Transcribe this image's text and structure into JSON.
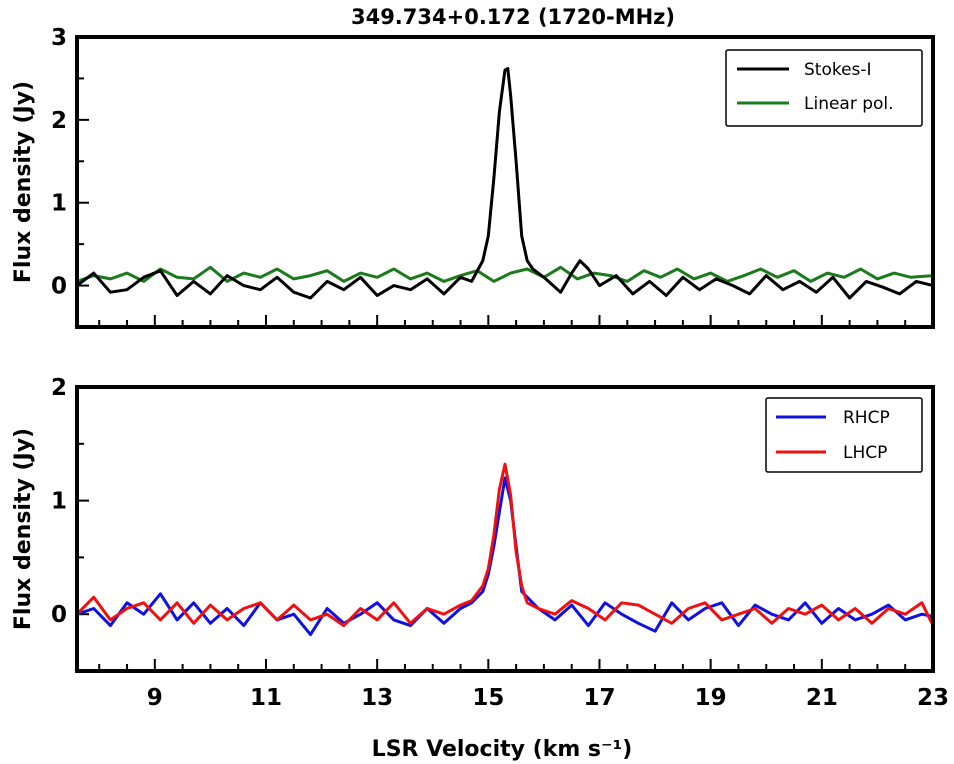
{
  "chart_data": [
    {
      "type": "line",
      "title": "349.734+0.172 (1720-MHz)",
      "xlabel": "",
      "ylabel": "Flux density (Jy)",
      "xlim": [
        7.6,
        23.0
      ],
      "ylim": [
        -0.5,
        3.0
      ],
      "yticks": [
        0,
        1,
        2,
        3
      ],
      "grid": false,
      "legend": "top-right",
      "series": [
        {
          "name": "Stokes-I",
          "color": "#000000",
          "x": [
            7.6,
            7.9,
            8.2,
            8.5,
            8.8,
            9.1,
            9.4,
            9.7,
            10.0,
            10.3,
            10.6,
            10.9,
            11.2,
            11.5,
            11.8,
            12.1,
            12.4,
            12.7,
            13.0,
            13.3,
            13.6,
            13.9,
            14.2,
            14.5,
            14.7,
            14.9,
            15.0,
            15.1,
            15.2,
            15.3,
            15.35,
            15.4,
            15.5,
            15.6,
            15.7,
            15.8,
            16.0,
            16.3,
            16.5,
            16.65,
            16.8,
            17.0,
            17.3,
            17.6,
            17.9,
            18.2,
            18.5,
            18.8,
            19.1,
            19.4,
            19.7,
            20.0,
            20.3,
            20.6,
            20.9,
            21.2,
            21.5,
            21.8,
            22.1,
            22.4,
            22.7,
            23.0
          ],
          "values": [
            0.0,
            0.15,
            -0.08,
            -0.05,
            0.1,
            0.18,
            -0.12,
            0.05,
            -0.1,
            0.12,
            0.0,
            -0.05,
            0.1,
            -0.08,
            -0.15,
            0.05,
            -0.05,
            0.1,
            -0.12,
            0.0,
            -0.05,
            0.08,
            -0.1,
            0.1,
            0.05,
            0.3,
            0.6,
            1.3,
            2.1,
            2.6,
            2.62,
            2.3,
            1.5,
            0.6,
            0.3,
            0.2,
            0.1,
            -0.08,
            0.15,
            0.3,
            0.2,
            0.0,
            0.12,
            -0.1,
            0.05,
            -0.12,
            0.1,
            -0.05,
            0.08,
            0.0,
            -0.1,
            0.12,
            -0.05,
            0.05,
            -0.08,
            0.1,
            -0.15,
            0.05,
            -0.02,
            -0.1,
            0.05,
            0.0
          ]
        },
        {
          "name": "Linear pol.",
          "color": "#1b7a1b",
          "x": [
            7.6,
            7.9,
            8.2,
            8.5,
            8.8,
            9.1,
            9.4,
            9.7,
            10.0,
            10.3,
            10.6,
            10.9,
            11.2,
            11.5,
            11.8,
            12.1,
            12.4,
            12.7,
            13.0,
            13.3,
            13.6,
            13.9,
            14.2,
            14.5,
            14.8,
            15.1,
            15.4,
            15.7,
            16.0,
            16.3,
            16.6,
            16.9,
            17.2,
            17.5,
            17.8,
            18.1,
            18.4,
            18.7,
            19.0,
            19.3,
            19.6,
            19.9,
            20.2,
            20.5,
            20.8,
            21.1,
            21.4,
            21.7,
            22.0,
            22.3,
            22.6,
            23.0
          ],
          "values": [
            0.05,
            0.12,
            0.08,
            0.15,
            0.05,
            0.2,
            0.1,
            0.08,
            0.22,
            0.05,
            0.15,
            0.1,
            0.2,
            0.08,
            0.12,
            0.18,
            0.05,
            0.15,
            0.1,
            0.2,
            0.08,
            0.15,
            0.05,
            0.12,
            0.18,
            0.05,
            0.15,
            0.2,
            0.1,
            0.22,
            0.08,
            0.15,
            0.12,
            0.05,
            0.18,
            0.1,
            0.2,
            0.08,
            0.15,
            0.05,
            0.12,
            0.2,
            0.1,
            0.18,
            0.05,
            0.15,
            0.1,
            0.2,
            0.08,
            0.15,
            0.1,
            0.12
          ]
        }
      ]
    },
    {
      "type": "line",
      "title": "",
      "xlabel": "LSR Velocity (km s⁻¹)",
      "ylabel": "Flux density (Jy)",
      "xlim": [
        7.6,
        23.0
      ],
      "ylim": [
        -0.5,
        2.0
      ],
      "xticks": [
        9,
        11,
        13,
        15,
        17,
        19,
        21,
        23
      ],
      "yticks": [
        0,
        1,
        2
      ],
      "grid": false,
      "legend": "top-right",
      "series": [
        {
          "name": "RHCP",
          "color": "#1010e0",
          "x": [
            7.6,
            7.9,
            8.2,
            8.5,
            8.8,
            9.1,
            9.4,
            9.7,
            10.0,
            10.3,
            10.6,
            10.9,
            11.2,
            11.5,
            11.8,
            12.1,
            12.4,
            12.7,
            13.0,
            13.3,
            13.6,
            13.9,
            14.2,
            14.5,
            14.7,
            14.9,
            15.0,
            15.1,
            15.2,
            15.3,
            15.4,
            15.5,
            15.6,
            15.7,
            15.9,
            16.2,
            16.5,
            16.8,
            17.1,
            17.4,
            17.7,
            18.0,
            18.3,
            18.6,
            18.9,
            19.2,
            19.5,
            19.8,
            20.1,
            20.4,
            20.7,
            21.0,
            21.3,
            21.6,
            21.9,
            22.2,
            22.5,
            22.8,
            23.0
          ],
          "values": [
            0.0,
            0.05,
            -0.1,
            0.1,
            0.0,
            0.18,
            -0.05,
            0.1,
            -0.08,
            0.05,
            -0.1,
            0.1,
            -0.05,
            0.0,
            -0.18,
            0.05,
            -0.08,
            0.0,
            0.1,
            -0.05,
            -0.1,
            0.05,
            -0.08,
            0.05,
            0.1,
            0.2,
            0.35,
            0.6,
            0.9,
            1.2,
            1.0,
            0.6,
            0.2,
            0.15,
            0.05,
            -0.05,
            0.08,
            -0.1,
            0.1,
            0.0,
            -0.08,
            -0.15,
            0.1,
            -0.05,
            0.05,
            0.1,
            -0.1,
            0.08,
            0.0,
            -0.05,
            0.1,
            -0.08,
            0.05,
            -0.05,
            0.0,
            0.08,
            -0.05,
            0.0,
            -0.02
          ]
        },
        {
          "name": "LHCP",
          "color": "#ee1111",
          "x": [
            7.6,
            7.9,
            8.2,
            8.5,
            8.8,
            9.1,
            9.4,
            9.7,
            10.0,
            10.3,
            10.6,
            10.9,
            11.2,
            11.5,
            11.8,
            12.1,
            12.4,
            12.7,
            13.0,
            13.3,
            13.6,
            13.9,
            14.2,
            14.5,
            14.7,
            14.9,
            15.0,
            15.1,
            15.2,
            15.3,
            15.4,
            15.5,
            15.6,
            15.7,
            15.9,
            16.2,
            16.5,
            16.8,
            17.1,
            17.4,
            17.7,
            18.0,
            18.3,
            18.6,
            18.9,
            19.2,
            19.5,
            19.8,
            20.1,
            20.4,
            20.7,
            21.0,
            21.3,
            21.6,
            21.9,
            22.2,
            22.5,
            22.8,
            23.0
          ],
          "values": [
            0.0,
            0.15,
            -0.05,
            0.05,
            0.1,
            -0.05,
            0.1,
            -0.08,
            0.08,
            -0.05,
            0.05,
            0.1,
            -0.05,
            0.08,
            -0.05,
            0.0,
            -0.1,
            0.05,
            -0.05,
            0.1,
            -0.08,
            0.05,
            0.0,
            0.08,
            0.12,
            0.25,
            0.4,
            0.7,
            1.1,
            1.32,
            1.05,
            0.55,
            0.25,
            0.1,
            0.05,
            0.0,
            0.12,
            0.05,
            -0.05,
            0.1,
            0.08,
            0.0,
            -0.08,
            0.05,
            0.1,
            -0.05,
            0.0,
            0.05,
            -0.08,
            0.05,
            0.0,
            0.08,
            -0.05,
            0.05,
            -0.08,
            0.05,
            0.0,
            0.1,
            -0.1
          ]
        }
      ]
    }
  ]
}
